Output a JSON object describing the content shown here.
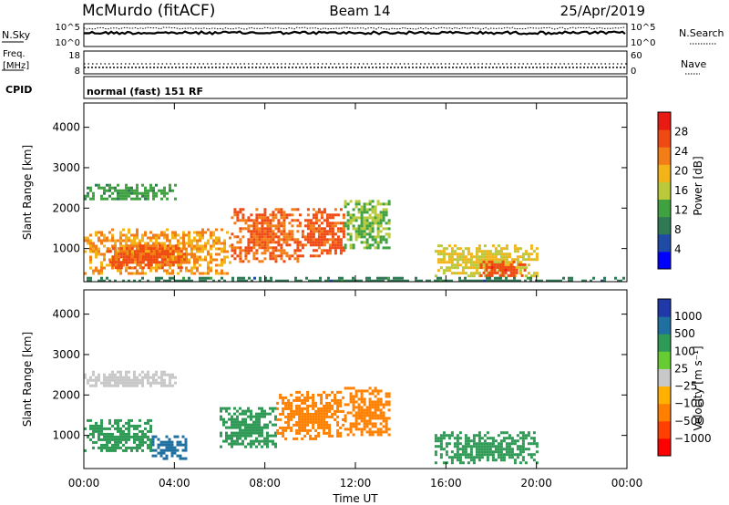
{
  "header": {
    "station": "McMurdo (fitACF)",
    "beam": "Beam 14",
    "date": "25/Apr/2019"
  },
  "top_panels": {
    "nsky_label": "N.Sky",
    "nsky_ticks": [
      "10^5",
      "10^0"
    ],
    "nsearch_label": "N.Search",
    "nsearch_ticks": [
      "10^5",
      "10^0"
    ],
    "freq_label_1": "Freq.",
    "freq_label_2": "[MHz]",
    "freq_ticks": [
      "18",
      "8"
    ],
    "nave_label": "Nave",
    "nave_ticks": [
      "60",
      "0"
    ],
    "cpid_label": "CPID",
    "cpid_text": "normal (fast) 151 RF"
  },
  "colors": {
    "power_scale": [
      "#0000ff",
      "#1f4aa5",
      "#2f7a55",
      "#3fa13f",
      "#b9c93a",
      "#f2b418",
      "#f37d16",
      "#ef4a14",
      "#e81b12"
    ],
    "velocity_scale": [
      "#ff0000",
      "#ff4000",
      "#ff8000",
      "#ffb000",
      "#c8c8c8",
      "#66cc33",
      "#2f9a55",
      "#1f70a0",
      "#1f3aa8"
    ]
  },
  "chart_data": [
    {
      "type": "heatmap",
      "panel": "power",
      "ylabel": "Slant Range [km]",
      "xlabel": "",
      "y_ticks": [
        "1000",
        "2000",
        "3000",
        "4000"
      ],
      "ylim": [
        180,
        4600
      ],
      "xlim_hours": [
        0,
        24
      ],
      "colorbar": {
        "label": "Power [dB]",
        "ticks": [
          "4",
          "8",
          "12",
          "16",
          "20",
          "24",
          "28"
        ],
        "range": [
          0,
          32
        ]
      },
      "regions": [
        {
          "t": [
            0.0,
            6.5
          ],
          "r": [
            400,
            1500
          ],
          "v": 22
        },
        {
          "t": [
            1.0,
            4.5
          ],
          "r": [
            500,
            1100
          ],
          "v": 27
        },
        {
          "t": [
            0.0,
            4.0
          ],
          "r": [
            2200,
            2600
          ],
          "v": 11
        },
        {
          "t": [
            6.5,
            9.5
          ],
          "r": [
            700,
            2000
          ],
          "v": 26
        },
        {
          "t": [
            9.5,
            11.5
          ],
          "r": [
            800,
            2000
          ],
          "v": 27
        },
        {
          "t": [
            11.5,
            13.5
          ],
          "r": [
            1000,
            2200
          ],
          "v": 14
        },
        {
          "t": [
            15.5,
            20.0
          ],
          "r": [
            300,
            1100
          ],
          "v": 18
        },
        {
          "t": [
            17.5,
            19.5
          ],
          "r": [
            300,
            700
          ],
          "v": 28
        },
        {
          "t": [
            0.0,
            24.0
          ],
          "r": [
            200,
            300
          ],
          "v": 8
        }
      ]
    },
    {
      "type": "heatmap",
      "panel": "velocity",
      "ylabel": "Slant Range [km]",
      "xlabel": "Time UT",
      "x_ticks": [
        "00:00",
        "04:00",
        "08:00",
        "12:00",
        "16:00",
        "20:00",
        "00:00"
      ],
      "y_ticks": [
        "1000",
        "2000",
        "3000",
        "4000"
      ],
      "ylim": [
        180,
        4600
      ],
      "xlim_hours": [
        0,
        24
      ],
      "colorbar": {
        "label": "Velocity [m s⁻¹]",
        "ticks": [
          "−1000",
          "−500",
          "−100",
          "−25",
          "25",
          "100",
          "500",
          "1000"
        ]
      },
      "regions": [
        {
          "t": [
            0.0,
            3.0
          ],
          "r": [
            600,
            1400
          ],
          "v": 100
        },
        {
          "t": [
            3.0,
            4.5
          ],
          "r": [
            400,
            1000
          ],
          "v": 800
        },
        {
          "t": [
            0.0,
            4.0
          ],
          "r": [
            2200,
            2600
          ],
          "v": 0
        },
        {
          "t": [
            6.0,
            8.5
          ],
          "r": [
            700,
            1700
          ],
          "v": 300
        },
        {
          "t": [
            8.5,
            11.5
          ],
          "r": [
            900,
            2100
          ],
          "v": -200
        },
        {
          "t": [
            11.5,
            13.5
          ],
          "r": [
            1000,
            2200
          ],
          "v": -200
        },
        {
          "t": [
            15.5,
            20.0
          ],
          "r": [
            300,
            1100
          ],
          "v": 150
        }
      ]
    }
  ]
}
